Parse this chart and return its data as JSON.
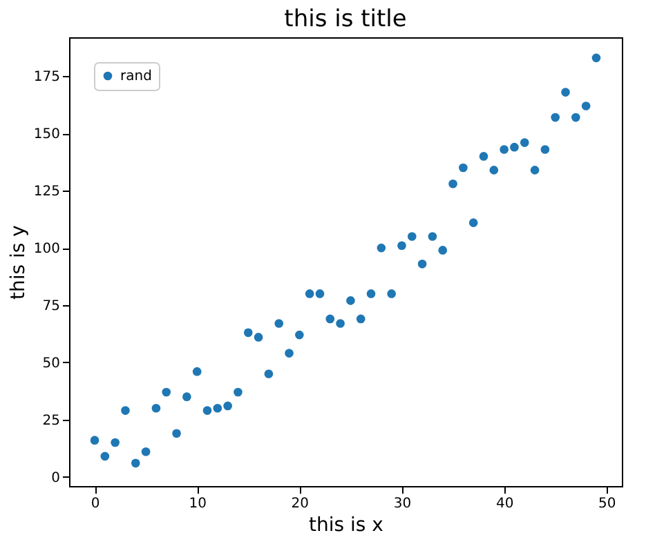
{
  "chart_data": {
    "type": "scatter",
    "title": "this is title",
    "xlabel": "this is x",
    "ylabel": "this is y",
    "x": [
      0,
      1,
      2,
      3,
      4,
      5,
      6,
      7,
      8,
      9,
      10,
      11,
      12,
      13,
      14,
      15,
      16,
      17,
      18,
      19,
      20,
      21,
      22,
      23,
      24,
      25,
      26,
      27,
      28,
      29,
      30,
      31,
      32,
      33,
      34,
      35,
      36,
      37,
      38,
      39,
      40,
      41,
      42,
      43,
      44,
      45,
      46,
      47,
      48,
      49
    ],
    "series": [
      {
        "name": "rand",
        "color": "#1f77b4",
        "values": [
          16,
          9,
          15,
          29,
          6,
          11,
          30,
          37,
          19,
          35,
          46,
          29,
          30,
          31,
          37,
          63,
          61,
          45,
          67,
          54,
          62,
          80,
          80,
          69,
          67,
          77,
          69,
          80,
          100,
          80,
          101,
          105,
          93,
          105,
          99,
          128,
          135,
          111,
          140,
          134,
          143,
          144,
          146,
          134,
          143,
          157,
          168,
          157,
          162,
          183
        ]
      }
    ],
    "xlim": [
      -2.5,
      51.5
    ],
    "ylim": [
      -4,
      192
    ],
    "xticks": [
      0,
      10,
      20,
      30,
      40,
      50
    ],
    "yticks": [
      0,
      25,
      50,
      75,
      100,
      125,
      150,
      175
    ],
    "legend": "top left",
    "grid": false,
    "marker": "circle"
  }
}
